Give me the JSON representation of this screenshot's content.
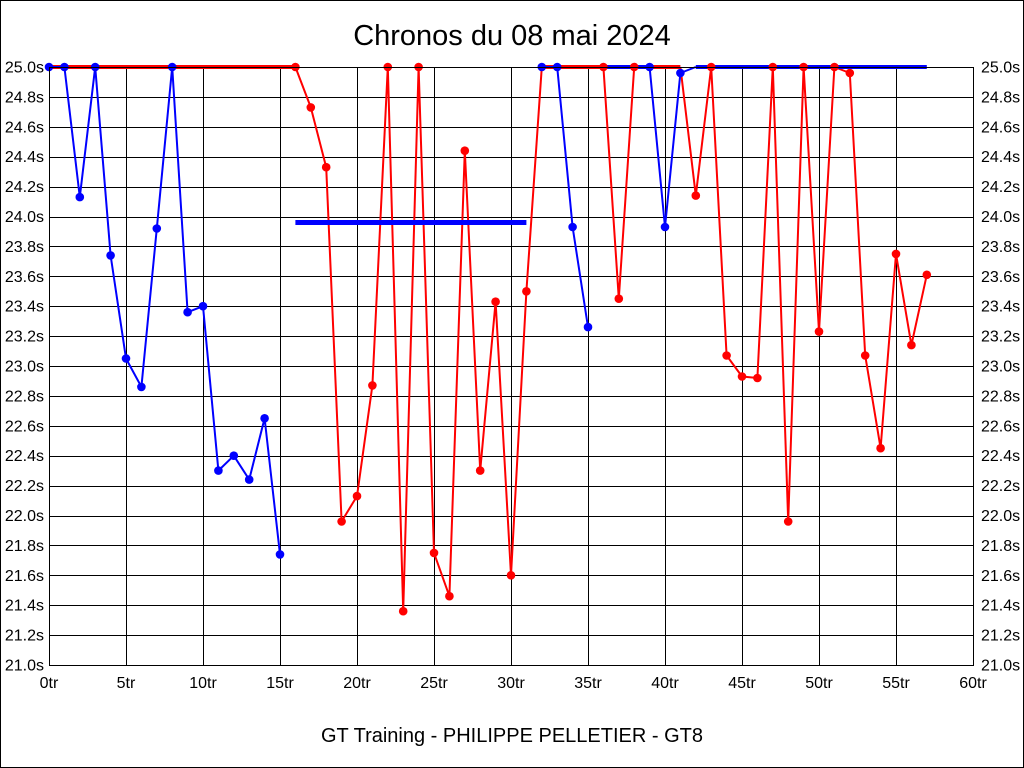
{
  "footer": "GT Training - PHILIPPE PELLETIER - GT8",
  "colors": {
    "series_red": "#ff0000",
    "series_blue": "#0000ff",
    "axis": "#000000",
    "background": "#ffffff"
  },
  "chart_data": {
    "type": "line",
    "title": "Chronos du 08 mai 2024",
    "xlabel": "",
    "ylabel": "",
    "x_unit": "tr",
    "y_unit": "s",
    "xlim": [
      0,
      60
    ],
    "ylim": [
      21.0,
      25.0
    ],
    "grid": true,
    "legend": "none",
    "x_ticks": [
      {
        "v": 0,
        "label": "0tr"
      },
      {
        "v": 5,
        "label": "5tr"
      },
      {
        "v": 10,
        "label": "10tr"
      },
      {
        "v": 15,
        "label": "15tr"
      },
      {
        "v": 20,
        "label": "20tr"
      },
      {
        "v": 25,
        "label": "25tr"
      },
      {
        "v": 30,
        "label": "30tr"
      },
      {
        "v": 35,
        "label": "35tr"
      },
      {
        "v": 40,
        "label": "40tr"
      },
      {
        "v": 45,
        "label": "45tr"
      },
      {
        "v": 50,
        "label": "50tr"
      },
      {
        "v": 55,
        "label": "55tr"
      },
      {
        "v": 60,
        "label": "60tr"
      }
    ],
    "y_ticks": [
      {
        "v": 25.0,
        "label": "25.0s"
      },
      {
        "v": 24.8,
        "label": "24.8s"
      },
      {
        "v": 24.6,
        "label": "24.6s"
      },
      {
        "v": 24.4,
        "label": "24.4s"
      },
      {
        "v": 24.2,
        "label": "24.2s"
      },
      {
        "v": 24.0,
        "label": "24.0s"
      },
      {
        "v": 23.8,
        "label": "23.8s"
      },
      {
        "v": 23.6,
        "label": "23.6s"
      },
      {
        "v": 23.4,
        "label": "23.4s"
      },
      {
        "v": 23.2,
        "label": "23.2s"
      },
      {
        "v": 23.0,
        "label": "23.0s"
      },
      {
        "v": 22.8,
        "label": "22.8s"
      },
      {
        "v": 22.6,
        "label": "22.6s"
      },
      {
        "v": 22.4,
        "label": "22.4s"
      },
      {
        "v": 22.2,
        "label": "22.2s"
      },
      {
        "v": 22.0,
        "label": "22.0s"
      },
      {
        "v": 21.8,
        "label": "21.8s"
      },
      {
        "v": 21.6,
        "label": "21.6s"
      },
      {
        "v": 21.4,
        "label": "21.4s"
      },
      {
        "v": 21.2,
        "label": "21.2s"
      },
      {
        "v": 21.0,
        "label": "21.0s"
      }
    ],
    "series": [
      {
        "name": "red-driver",
        "color": "#ff0000",
        "segments": [
          {
            "w": 4,
            "pts": [
              [
                0,
                25.0,
                0
              ],
              [
                16,
                25.0,
                0
              ]
            ]
          },
          {
            "w": 2,
            "pts": [
              [
                16,
                25.0,
                1
              ],
              [
                17,
                24.73,
                1
              ],
              [
                18,
                24.33,
                1
              ],
              [
                19,
                21.96,
                1
              ],
              [
                20,
                22.13,
                1
              ],
              [
                21,
                22.87,
                1
              ],
              [
                22,
                25.0,
                1
              ],
              [
                23,
                21.36,
                1
              ],
              [
                24,
                25.0,
                1
              ],
              [
                25,
                21.75,
                1
              ],
              [
                26,
                21.46,
                1
              ],
              [
                27,
                24.44,
                1
              ],
              [
                28,
                22.3,
                1
              ],
              [
                29,
                23.43,
                1
              ],
              [
                30,
                21.6,
                1
              ],
              [
                31,
                23.5,
                1
              ],
              [
                32,
                25.0,
                0
              ]
            ]
          },
          {
            "w": 4,
            "pts": [
              [
                32,
                25.0,
                0
              ],
              [
                36,
                25.0,
                0
              ]
            ]
          },
          {
            "w": 2,
            "pts": [
              [
                36,
                25.0,
                1
              ],
              [
                37,
                23.45,
                1
              ],
              [
                38,
                25.0,
                1
              ]
            ]
          },
          {
            "w": 4,
            "pts": [
              [
                38,
                25.0,
                0
              ],
              [
                41,
                25.0,
                0
              ]
            ]
          },
          {
            "w": 2,
            "pts": [
              [
                41,
                25.0,
                0
              ],
              [
                42,
                24.14,
                1
              ],
              [
                43,
                25.0,
                1
              ],
              [
                44,
                23.07,
                1
              ],
              [
                45,
                22.93,
                1
              ],
              [
                46,
                22.92,
                1
              ],
              [
                47,
                25.0,
                1
              ],
              [
                48,
                21.96,
                1
              ],
              [
                49,
                25.0,
                1
              ],
              [
                50,
                23.23,
                1
              ],
              [
                51,
                25.0,
                1
              ],
              [
                52,
                24.96,
                1
              ],
              [
                53,
                23.07,
                1
              ],
              [
                54,
                22.45,
                1
              ],
              [
                55,
                23.75,
                1
              ],
              [
                56,
                23.14,
                1
              ],
              [
                57,
                23.61,
                1
              ]
            ]
          }
        ]
      },
      {
        "name": "blue-driver",
        "color": "#0000ff",
        "segments": [
          {
            "w": 2,
            "pts": [
              [
                0,
                25.0,
                1
              ],
              [
                1,
                25.0,
                1
              ],
              [
                2,
                24.13,
                1
              ],
              [
                3,
                25.0,
                1
              ],
              [
                4,
                23.74,
                1
              ],
              [
                5,
                23.05,
                1
              ],
              [
                6,
                22.86,
                1
              ],
              [
                7,
                23.92,
                1
              ],
              [
                8,
                25.0,
                1
              ],
              [
                9,
                23.36,
                1
              ],
              [
                10,
                23.4,
                1
              ],
              [
                11,
                22.3,
                1
              ],
              [
                12,
                22.4,
                1
              ],
              [
                13,
                22.24,
                1
              ],
              [
                14,
                22.65,
                1
              ],
              [
                15,
                21.74,
                1
              ]
            ]
          },
          {
            "w": 5,
            "pts": [
              [
                16,
                23.96,
                0
              ],
              [
                31,
                23.96,
                0
              ]
            ]
          },
          {
            "w": 2,
            "pts": [
              [
                32,
                25.0,
                1
              ],
              [
                33,
                25.0,
                1
              ],
              [
                34,
                23.93,
                1
              ],
              [
                35,
                23.26,
                1
              ]
            ]
          },
          {
            "w": 4,
            "pts": [
              [
                36,
                25.0,
                0
              ],
              [
                39,
                25.0,
                0
              ]
            ]
          },
          {
            "w": 2,
            "pts": [
              [
                39,
                25.0,
                1
              ],
              [
                40,
                23.93,
                1
              ],
              [
                41,
                24.96,
                1
              ],
              [
                42,
                25.0,
                0
              ]
            ]
          },
          {
            "w": 4,
            "pts": [
              [
                42,
                25.0,
                0
              ],
              [
                57,
                25.0,
                0
              ]
            ]
          }
        ]
      }
    ]
  }
}
